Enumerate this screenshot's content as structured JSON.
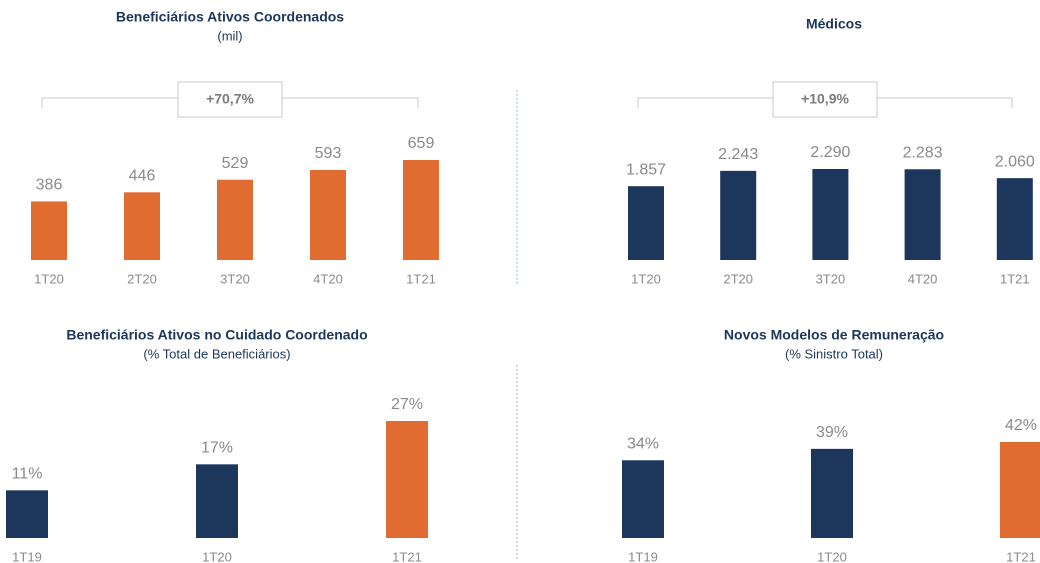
{
  "chart_data": [
    {
      "type": "bar",
      "title": "Beneficiários Ativos Coordenados",
      "subtitle": "(mil)",
      "annotation": "+70,7%",
      "categories": [
        "1T20",
        "2T20",
        "3T20",
        "4T20",
        "1T21"
      ],
      "values": [
        386,
        446,
        529,
        593,
        659
      ],
      "color": "#e06c31"
    },
    {
      "type": "bar",
      "title": "Médicos",
      "annotation": "+10,9%",
      "categories": [
        "1T20",
        "2T20",
        "3T20",
        "4T20",
        "1T21"
      ],
      "values": [
        1857,
        2243,
        2290,
        2283,
        2060
      ],
      "value_labels": [
        "1.857",
        "2.243",
        "2.290",
        "2.283",
        "2.060"
      ],
      "color": "#1c365c"
    },
    {
      "type": "bar",
      "title": "Beneficiários Ativos no Cuidado Coordenado",
      "subtitle": "(% Total de Beneficiários)",
      "categories": [
        "1T19",
        "1T20",
        "1T21"
      ],
      "values": [
        11,
        17,
        27
      ],
      "value_labels": [
        "11%",
        "17%",
        "27%"
      ],
      "colors": [
        "#1c365c",
        "#1c365c",
        "#e06c31"
      ]
    },
    {
      "type": "bar",
      "title": "Novos Modelos de Remuneração",
      "subtitle": "(% Sinistro Total)",
      "categories": [
        "1T19",
        "1T20",
        "1T21"
      ],
      "values": [
        34,
        39,
        42
      ],
      "value_labels": [
        "34%",
        "39%",
        "42%"
      ],
      "colors": [
        "#1c365c",
        "#1c365c",
        "#e06c31"
      ]
    }
  ]
}
